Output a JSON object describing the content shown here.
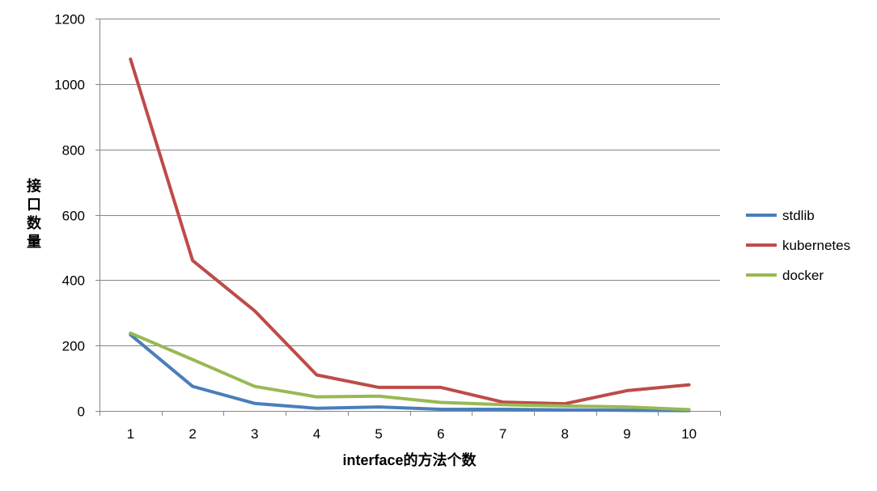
{
  "chart_data": {
    "type": "line",
    "title": "",
    "xlabel": "interface的方法个数",
    "ylabel": "接口数量",
    "x": [
      1,
      2,
      3,
      4,
      5,
      6,
      7,
      8,
      9,
      10
    ],
    "x_tick_labels": [
      "1",
      "2",
      "3",
      "4",
      "5",
      "6",
      "7",
      "8",
      "9",
      "10"
    ],
    "y_tick_labels": [
      "0",
      "200",
      "400",
      "600",
      "800",
      "1000",
      "1200"
    ],
    "y_ticks": [
      0,
      200,
      400,
      600,
      800,
      1000,
      1200
    ],
    "ylim": [
      0,
      1200
    ],
    "grid": true,
    "legend_position": "right",
    "series": [
      {
        "name": "stdlib",
        "color": "#4a7ebb",
        "values": [
          233,
          75,
          23,
          8,
          12,
          5,
          5,
          3,
          2,
          1
        ]
      },
      {
        "name": "kubernetes",
        "color": "#be4b48",
        "values": [
          1076,
          460,
          306,
          110,
          72,
          72,
          27,
          22,
          62,
          80
        ]
      },
      {
        "name": "docker",
        "color": "#98b954",
        "values": [
          238,
          157,
          75,
          43,
          45,
          26,
          19,
          15,
          12,
          4
        ]
      }
    ]
  }
}
